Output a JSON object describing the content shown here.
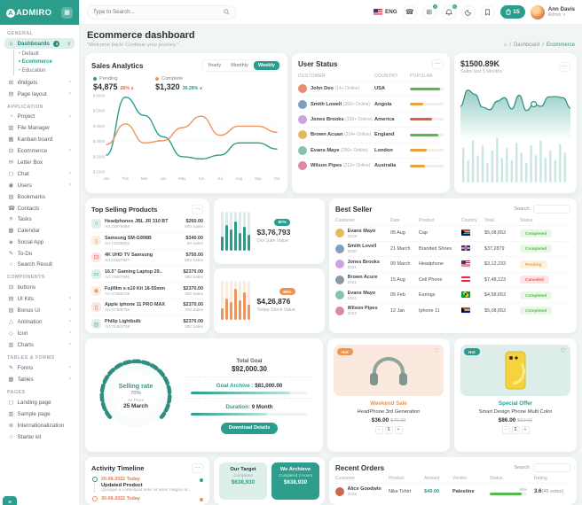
{
  "colors": {
    "primary": "#2a9d8c",
    "orange": "#ee9350",
    "red": "#e25c4a",
    "green": "#54ba4a"
  },
  "brand": {
    "name": "ADMIRO"
  },
  "header": {
    "search_placeholder": "Type to Search...",
    "language": "ENG",
    "apps_badge": "3",
    "bell_badge": "6",
    "pill_value": "15",
    "user_name": "Ann Davis",
    "user_role": "Admin"
  },
  "page": {
    "title": "Ecommerce dashboard",
    "subtitle": "\"Welcome back! Continue your journey.\""
  },
  "breadcrumb": {
    "home": "⌂",
    "items": [
      "Dashboard",
      "Ecommerce"
    ]
  },
  "sidebar": {
    "sections": [
      {
        "label": "GENERAL",
        "items": [
          {
            "icon": "⌂",
            "label": "Dashboards",
            "badge": "3",
            "chevron": "∨",
            "active": true,
            "children": [
              {
                "label": "Default"
              },
              {
                "label": "Ecommerce",
                "active": true
              },
              {
                "label": "Education"
              }
            ]
          },
          {
            "icon": "⊞",
            "label": "Widgets",
            "chevron": "›"
          },
          {
            "icon": "▤",
            "label": "Page layout",
            "chevron": "›"
          }
        ]
      },
      {
        "label": "APPLICATION",
        "items": [
          {
            "icon": "◔",
            "label": "Project",
            "chevron": "›"
          },
          {
            "icon": "▥",
            "label": "File Manager"
          },
          {
            "icon": "▦",
            "label": "Kanban board"
          },
          {
            "icon": "⊟",
            "label": "Ecommerce",
            "chevron": "›"
          },
          {
            "icon": "✉",
            "label": "Letter Box"
          },
          {
            "icon": "◻",
            "label": "Chat",
            "chevron": "›"
          },
          {
            "icon": "◉",
            "label": "Users",
            "chevron": "›"
          },
          {
            "icon": "▧",
            "label": "Bookmarks"
          },
          {
            "icon": "☎",
            "label": "Contacts"
          },
          {
            "icon": "≡",
            "label": "Tasks"
          },
          {
            "icon": "▦",
            "label": "Calendar"
          },
          {
            "icon": "◈",
            "label": "Social App"
          },
          {
            "icon": "✎",
            "label": "To-Do"
          },
          {
            "icon": "○",
            "label": "Search Result"
          }
        ]
      },
      {
        "label": "COMPONENTS",
        "items": [
          {
            "icon": "⊟",
            "label": "buttons"
          },
          {
            "icon": "▤",
            "label": "UI Kits",
            "chevron": "›"
          },
          {
            "icon": "▧",
            "label": "Bonus Ui",
            "chevron": "›"
          },
          {
            "icon": "△",
            "label": "Animation",
            "chevron": "›"
          },
          {
            "icon": "◇",
            "label": "Icon",
            "chevron": "›"
          },
          {
            "icon": "▥",
            "label": "Charts",
            "chevron": "›"
          }
        ]
      },
      {
        "label": "TABLES & FORMS",
        "items": [
          {
            "icon": "✎",
            "label": "Forms",
            "chevron": "›"
          },
          {
            "icon": "▦",
            "label": "Tables",
            "chevron": "›"
          }
        ]
      },
      {
        "label": "PAGES",
        "items": [
          {
            "icon": "◻",
            "label": "Landing page"
          },
          {
            "icon": "▥",
            "label": "Sample page"
          },
          {
            "icon": "⊕",
            "label": "Internationalization"
          },
          {
            "icon": "☆",
            "label": "Starter kit"
          }
        ]
      }
    ]
  },
  "sales_analytics": {
    "title": "Sales Analytics",
    "tabs": [
      "Yearly",
      "Monthly",
      "Weekly"
    ],
    "active_tab": "Weekly",
    "pending_label": "Pending",
    "pending_value": "$4,875",
    "pending_delta": "26% ∧",
    "complete_label": "Complete",
    "complete_value": "$1,320",
    "complete_delta": "36.28% ∨"
  },
  "chart_data": [
    {
      "id": "sales-analytics",
      "type": "line",
      "x": [
        "Jan",
        "Feb",
        "Mar",
        "Apr",
        "May",
        "Jun",
        "Jul",
        "Aug",
        "Sep",
        "Oct"
      ],
      "series": [
        {
          "name": "Pending",
          "color": "#2a9d8c",
          "values": [
            2100,
            5900,
            4700,
            3300,
            2000,
            1850,
            2100,
            2900,
            2900,
            2500
          ]
        },
        {
          "name": "Complete",
          "color": "#f2935c",
          "values": [
            2800,
            4150,
            2900,
            3050,
            3900,
            4650,
            3400,
            4000,
            4000,
            3600
          ]
        }
      ],
      "ylim": [
        1000,
        6000
      ],
      "yticks": [
        "$ 6000",
        "$ 5000",
        "$ 4000",
        "$ 3000",
        "$ 2000",
        "$ 1000"
      ],
      "grid": true,
      "legend_position": "top"
    },
    {
      "id": "sales-5-months",
      "type": "area",
      "title": "$1500.89K",
      "subtitle": "Sales last 5 Months",
      "color": "#2a9d8c",
      "area": [
        50,
        88,
        78,
        48,
        42,
        62,
        70,
        44,
        76,
        40,
        55,
        50,
        72,
        73,
        70,
        46
      ],
      "marker_index": 10,
      "bars": [
        70,
        45,
        85,
        55,
        75,
        40,
        65,
        90,
        50,
        70,
        45,
        80,
        60,
        40,
        75,
        55,
        85,
        50,
        65,
        45,
        78,
        60
      ]
    },
    {
      "id": "our-sale-bars",
      "type": "bar",
      "values": [
        35,
        65,
        55,
        75,
        45,
        60,
        40
      ],
      "color": "#2a9d8c"
    },
    {
      "id": "today-stock-bars",
      "type": "bar",
      "values": [
        30,
        55,
        45,
        80,
        50,
        70,
        40
      ],
      "color": "#ee9350"
    },
    {
      "id": "selling-rate-gauge",
      "type": "gauge",
      "percent": 70
    }
  ],
  "user_status": {
    "title": "User Status",
    "columns": [
      "CUSTOMER",
      "COUNTRY",
      "POPULAR"
    ],
    "rows": [
      {
        "name": "John Deo",
        "sub": "(14+ Online)",
        "country": "USA",
        "bar": 90,
        "bar_color": "#54ba4a"
      },
      {
        "name": "Smith Lowell",
        "sub": "(250+ Online)",
        "country": "Angola",
        "bar": 40,
        "bar_color": "#e8a23d"
      },
      {
        "name": "Jones Brooks",
        "sub": "(130+ Online)",
        "country": "America",
        "bar": 65,
        "bar_color": "#e25c4a"
      },
      {
        "name": "Brown Acuan",
        "sub": "(214+ Online)",
        "country": "England",
        "bar": 85,
        "bar_color": "#54ba4a"
      },
      {
        "name": "Evans Maye",
        "sub": "(250+ Online)",
        "country": "London",
        "bar": 50,
        "bar_color": "#e8a23d"
      },
      {
        "name": "Wilson Pipes",
        "sub": "(213+ Online)",
        "country": "Australia",
        "bar": 45,
        "bar_color": "#e8a23d"
      }
    ]
  },
  "sales_5m": {
    "value": "$1500.89K",
    "subtitle": "Sales last 5 Months"
  },
  "top_selling": {
    "title": "Top Selling Products",
    "items": [
      {
        "icon": "headphones-icon",
        "glyph": "∩",
        "name": "Headphones JBL JR 310 BT",
        "art": "Art.23879088",
        "price": "$260.00",
        "sales": "900 Sales",
        "tone": "teal"
      },
      {
        "icon": "phone-icon",
        "glyph": "▯",
        "name": "Samsung SM-G998B",
        "art": "Art.72638802",
        "price": "$340.00",
        "sales": "20 Sales",
        "tone": "orange"
      },
      {
        "icon": "tv-icon",
        "glyph": "⊡",
        "name": "4K UHD TV Samsung",
        "art": "Art.63887987",
        "price": "$750.00",
        "sales": "800 Sales",
        "tone": "red"
      },
      {
        "icon": "laptop-icon",
        "glyph": "▭",
        "name": "16.5\" Gaming Laptop 29..",
        "art": "Art.73987990",
        "price": "$2370.00",
        "sales": "300 Sales",
        "tone": "teal"
      },
      {
        "icon": "camera-icon",
        "glyph": "◉",
        "name": "Fujifilm x-s10 Kit 18-55mm",
        "art": "Art.37489739",
        "price": "$2370.00",
        "sales": "300 Sales",
        "tone": "orange"
      },
      {
        "icon": "phone-icon",
        "glyph": "▯",
        "name": "Apple iphone 11 PRO MAX",
        "art": "Art.27389789",
        "price": "$2370.00",
        "sales": "300 Sales",
        "tone": "red"
      },
      {
        "icon": "bulb-icon",
        "glyph": "◎",
        "name": "Philip Lightbulb",
        "art": "Art.74383789",
        "price": "$2370.00",
        "sales": "300 Sales",
        "tone": "teal"
      }
    ]
  },
  "stat_cards": [
    {
      "badge": "80%",
      "value": "$3,76,793",
      "label": "Our Sale Value",
      "tone": "teal"
    },
    {
      "badge": "80%",
      "value": "$4,26,876",
      "label": "Today Stock Value",
      "tone": "orange"
    }
  ],
  "best_seller": {
    "title": "Best Seller",
    "search_label": "Search:",
    "columns": [
      "Customer",
      "Date",
      "Product",
      "Country",
      "Total",
      "Status"
    ],
    "rows": [
      {
        "name": "Evans Mayo",
        "year": "2019",
        "date": "05 Aug",
        "product": "Cap",
        "flag": "za",
        "total": "$5,08,653",
        "status": "Completed"
      },
      {
        "name": "Smith Lovell",
        "year": "2020",
        "date": "21 March",
        "product": "Branded Shoes",
        "flag": "gb",
        "total": "$37,2879",
        "status": "Completed"
      },
      {
        "name": "Jones Brooks",
        "year": "2021",
        "date": "09 March",
        "product": "Headphone",
        "flag": "us",
        "total": "$3,12,233",
        "status": "Pending"
      },
      {
        "name": "Brown Acure",
        "year": "2021",
        "date": "15 Aug",
        "product": "Cell Phone",
        "flag": "at",
        "total": "$7,48,123",
        "status": "Canceled"
      },
      {
        "name": "Evans Mayo",
        "year": "2022",
        "date": "05 Feb",
        "product": "Earings",
        "flag": "br",
        "total": "$4,58,653",
        "status": "Completed"
      },
      {
        "name": "Wilson Pipes",
        "year": "2022",
        "date": "12 Jan",
        "product": "Iphone 11",
        "flag": "za",
        "total": "$5,08,653",
        "status": "Completed"
      }
    ]
  },
  "goal": {
    "gauge_label": "Selling rate",
    "gauge_percent": "70%",
    "gauge_sub": "As From",
    "gauge_date": "25 March",
    "total_goal_label": "Total Goal",
    "total_goal": "$92,000.30",
    "archive_label": "Goal Archive :",
    "archive_value": "$81,000.00",
    "archive_pct": 85,
    "duration_label": "Duration:",
    "duration_value": "9 Month",
    "duration_pct": 65,
    "button": "Download Details"
  },
  "products": [
    {
      "badge": "Hot",
      "tone": "orange",
      "sale": "Weekend Sale",
      "name": "HeadPhone 3rd Generation",
      "price": "$36.00",
      "old_price": "$70.00",
      "qty": "1",
      "minus": "-",
      "plus": "+"
    },
    {
      "badge": "Hot",
      "tone": "teal",
      "sale": "Special Offer",
      "name": "Smart Design Phone Multi Color",
      "price": "$86.00",
      "old_price": "$60.00",
      "qty": "1",
      "minus": "-",
      "plus": "+"
    }
  ],
  "timeline": {
    "title": "Activity Timeline",
    "items": [
      {
        "date": "20-06-2022 Today",
        "title": "Updated Product",
        "desc": "Quisque a consequat ante sit amet magna at...",
        "dot": "#2a9d8c",
        "ring": "teal"
      },
      {
        "date": "30-06-2022 Today",
        "title": "",
        "desc": "",
        "dot": "#ee9350",
        "ring": "o"
      }
    ]
  },
  "targets": [
    {
      "title": "Our Target",
      "sub": "Completed",
      "value": "$638,930"
    },
    {
      "title": "We Archieve",
      "sub": "Completed 2 Hours",
      "value": "$638,930"
    }
  ],
  "recent_orders": {
    "title": "Recent Orders",
    "search_label": "Search:",
    "columns": [
      "Customer",
      "Product",
      "Amount",
      "Vendor",
      "Status",
      "Rating"
    ],
    "rows": [
      {
        "name": "Alice Goodwin",
        "year": "2019",
        "product": "Nike Tshirt",
        "amount": "$49.00",
        "vendor": "Palestine",
        "status_pct": 85,
        "status_label": "85%",
        "rating": "3.6",
        "votes": "(45 votes)"
      }
    ]
  }
}
